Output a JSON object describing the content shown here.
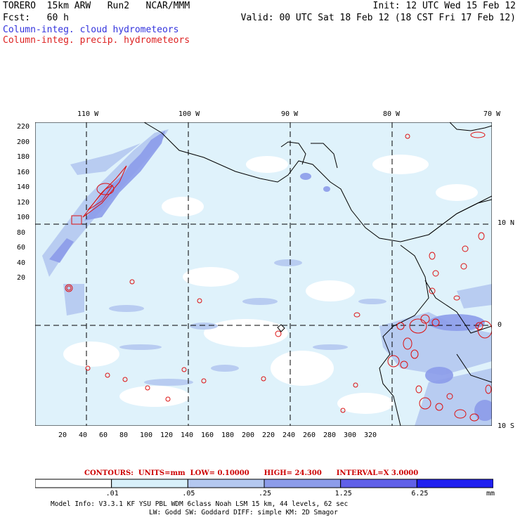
{
  "header": {
    "model": "TORERO",
    "resolution": "15km ARW",
    "run": "Run2",
    "org": "NCAR/MMM",
    "init": "Init: 12 UTC Wed 15 Feb 12",
    "fcst_label": "Fcst:",
    "fcst_hours": "60 h",
    "valid": "Valid: 00 UTC Sat 18 Feb 12 (18 CST Fri 17 Feb 12)",
    "field_cloud": "Column-integ. cloud hydrometeors",
    "field_precip": "Column-integ. precip. hydrometeors"
  },
  "map": {
    "longitude_labels": [
      "110 W",
      "100 W",
      "90 W",
      "80 W",
      "70 W"
    ],
    "latitude_labels": [
      "10 N",
      "0",
      "10 S"
    ],
    "y_ticks": [
      "220",
      "200",
      "180",
      "160",
      "140",
      "120",
      "100",
      "80",
      "60",
      "40",
      "20"
    ],
    "x_ticks": [
      "20",
      "40",
      "60",
      "80",
      "100",
      "120",
      "140",
      "160",
      "180",
      "200",
      "220",
      "240",
      "260",
      "280",
      "300",
      "320"
    ]
  },
  "contours": {
    "label": "CONTOURS:",
    "units": "UNITS=mm",
    "low": "LOW= 0.10000",
    "high": "HIGH=  24.300",
    "interval": "INTERVAL=X  3.0000"
  },
  "colorbar": {
    "levels": [
      ".01",
      ".05",
      ".25",
      "1.25",
      "6.25"
    ],
    "unit": "mm",
    "colors": [
      "#ffffff",
      "#d8f0fa",
      "#b4c8f0",
      "#8c9cea",
      "#6060e8",
      "#2020f0"
    ]
  },
  "footer": {
    "line1": "Model Info: V3.3.1    KF     YSU PBL  WDM 6class  Noah LSM  15 km,   44 levels,   62 sec",
    "line2": "LW: Godd SW: Goddard DIFF: simple KM: 2D Smagor"
  }
}
